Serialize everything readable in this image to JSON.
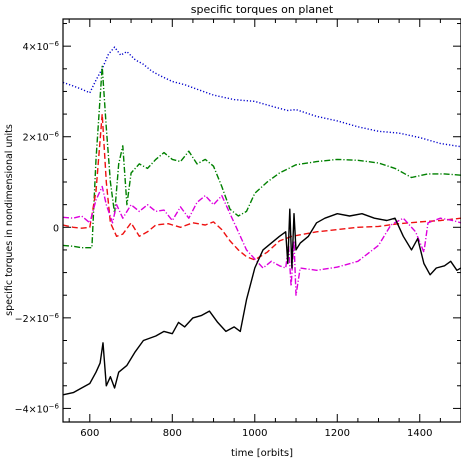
{
  "chart_data": {
    "type": "line",
    "title": "specific torques on planet",
    "xlabel": "time [orbits]",
    "ylabel": "specific torques in nondimensional units",
    "xlim": [
      535,
      1500
    ],
    "ylim": [
      -4.3e-06,
      4.6e-06
    ],
    "x_ticks": [
      {
        "value": 600,
        "label": "600"
      },
      {
        "value": 800,
        "label": "800"
      },
      {
        "value": 1000,
        "label": "1000"
      },
      {
        "value": 1200,
        "label": "1200"
      },
      {
        "value": 1400,
        "label": "1400"
      }
    ],
    "y_ticks": [
      {
        "value": -4e-06,
        "mant": "−4×10",
        "exp": "−6"
      },
      {
        "value": -2e-06,
        "mant": "−2×10",
        "exp": "−6"
      },
      {
        "value": 0,
        "mant": "0",
        "exp": ""
      },
      {
        "value": 2e-06,
        "mant": "2×10",
        "exp": "−6"
      },
      {
        "value": 4e-06,
        "mant": "4×10",
        "exp": "−6"
      }
    ],
    "grid": false,
    "legend": "none",
    "series": [
      {
        "color": "#0000cc",
        "dash": "dotted",
        "points": [
          [
            535,
            3.2e-06
          ],
          [
            560,
            3.12e-06
          ],
          [
            580,
            3.05e-06
          ],
          [
            600,
            2.97e-06
          ],
          [
            615,
            3.25e-06
          ],
          [
            630,
            3.5e-06
          ],
          [
            645,
            3.82e-06
          ],
          [
            660,
            3.98e-06
          ],
          [
            675,
            3.8e-06
          ],
          [
            690,
            3.88e-06
          ],
          [
            710,
            3.7e-06
          ],
          [
            730,
            3.6e-06
          ],
          [
            750,
            3.45e-06
          ],
          [
            770,
            3.35e-06
          ],
          [
            800,
            3.22e-06
          ],
          [
            830,
            3.15e-06
          ],
          [
            860,
            3.05e-06
          ],
          [
            900,
            2.92e-06
          ],
          [
            950,
            2.82e-06
          ],
          [
            1000,
            2.78e-06
          ],
          [
            1050,
            2.65e-06
          ],
          [
            1080,
            2.58e-06
          ],
          [
            1100,
            2.6e-06
          ],
          [
            1150,
            2.45e-06
          ],
          [
            1200,
            2.35e-06
          ],
          [
            1250,
            2.22e-06
          ],
          [
            1300,
            2.12e-06
          ],
          [
            1350,
            2.08e-06
          ],
          [
            1400,
            1.98e-06
          ],
          [
            1450,
            1.85e-06
          ],
          [
            1500,
            1.78e-06
          ]
        ]
      },
      {
        "color": "#008000",
        "dash": "dash-dot",
        "points": [
          [
            535,
            -4e-07
          ],
          [
            560,
            -4.2e-07
          ],
          [
            580,
            -4.5e-07
          ],
          [
            605,
            -4.5e-07
          ],
          [
            615,
            1.5e-06
          ],
          [
            630,
            3.55e-06
          ],
          [
            640,
            2.2e-06
          ],
          [
            650,
            1e-06
          ],
          [
            660,
            3e-07
          ],
          [
            670,
            1.4e-06
          ],
          [
            680,
            1.8e-06
          ],
          [
            690,
            5e-07
          ],
          [
            700,
            1.2e-06
          ],
          [
            720,
            1.4e-06
          ],
          [
            740,
            1.3e-06
          ],
          [
            760,
            1.5e-06
          ],
          [
            780,
            1.65e-06
          ],
          [
            800,
            1.5e-06
          ],
          [
            820,
            1.45e-06
          ],
          [
            840,
            1.68e-06
          ],
          [
            860,
            1.4e-06
          ],
          [
            880,
            1.5e-06
          ],
          [
            900,
            1.35e-06
          ],
          [
            920,
            9e-07
          ],
          [
            940,
            4e-07
          ],
          [
            960,
            2.5e-07
          ],
          [
            980,
            3.5e-07
          ],
          [
            1000,
            7.5e-07
          ],
          [
            1030,
            1e-06
          ],
          [
            1060,
            1.2e-06
          ],
          [
            1100,
            1.38e-06
          ],
          [
            1150,
            1.45e-06
          ],
          [
            1200,
            1.5e-06
          ],
          [
            1250,
            1.48e-06
          ],
          [
            1300,
            1.42e-06
          ],
          [
            1340,
            1.3e-06
          ],
          [
            1380,
            1.1e-06
          ],
          [
            1420,
            1.18e-06
          ],
          [
            1460,
            1.18e-06
          ],
          [
            1500,
            1.15e-06
          ]
        ]
      },
      {
        "color": "#ee1111",
        "dash": "dashed",
        "points": [
          [
            535,
            5e-08
          ],
          [
            560,
            0.0
          ],
          [
            580,
            -2e-08
          ],
          [
            600,
            0.0
          ],
          [
            615,
            8e-07
          ],
          [
            630,
            2.5e-06
          ],
          [
            640,
            1e-06
          ],
          [
            650,
            1e-07
          ],
          [
            665,
            -2e-07
          ],
          [
            680,
            -1.5e-07
          ],
          [
            700,
            1e-07
          ],
          [
            720,
            -2e-07
          ],
          [
            740,
            -1e-07
          ],
          [
            760,
            5e-08
          ],
          [
            790,
            8e-08
          ],
          [
            820,
            0.0
          ],
          [
            850,
            1e-07
          ],
          [
            880,
            5e-08
          ],
          [
            900,
            1.2e-07
          ],
          [
            920,
            -5e-08
          ],
          [
            940,
            -3e-07
          ],
          [
            960,
            -5e-07
          ],
          [
            980,
            -6.5e-07
          ],
          [
            1000,
            -7.2e-07
          ],
          [
            1030,
            -5.5e-07
          ],
          [
            1060,
            -3e-07
          ],
          [
            1090,
            -2e-07
          ],
          [
            1120,
            -1.5e-07
          ],
          [
            1150,
            -1e-07
          ],
          [
            1200,
            -5e-08
          ],
          [
            1250,
            0.0
          ],
          [
            1300,
            2e-08
          ],
          [
            1350,
            8e-08
          ],
          [
            1400,
            1.2e-07
          ],
          [
            1450,
            1.5e-07
          ],
          [
            1500,
            2e-07
          ]
        ]
      },
      {
        "color": "#dd00dd",
        "dash": "dash-dot",
        "points": [
          [
            535,
            2.2e-07
          ],
          [
            560,
            2e-07
          ],
          [
            580,
            2.5e-07
          ],
          [
            600,
            1e-07
          ],
          [
            615,
            6e-07
          ],
          [
            630,
            9e-07
          ],
          [
            640,
            5e-07
          ],
          [
            655,
            1e-07
          ],
          [
            665,
            5e-07
          ],
          [
            680,
            2e-07
          ],
          [
            700,
            5e-07
          ],
          [
            720,
            3.5e-07
          ],
          [
            740,
            5e-07
          ],
          [
            760,
            3.5e-07
          ],
          [
            780,
            3.8e-07
          ],
          [
            800,
            1.5e-07
          ],
          [
            820,
            4.5e-07
          ],
          [
            840,
            2e-07
          ],
          [
            860,
            5.5e-07
          ],
          [
            880,
            7e-07
          ],
          [
            900,
            5e-07
          ],
          [
            920,
            7e-07
          ],
          [
            940,
            3e-07
          ],
          [
            960,
            -1e-07
          ],
          [
            980,
            -5e-07
          ],
          [
            1000,
            -7e-07
          ],
          [
            1020,
            -9e-07
          ],
          [
            1040,
            -7.5e-07
          ],
          [
            1060,
            -8.5e-07
          ],
          [
            1075,
            -9e-07
          ],
          [
            1082,
            -4e-07
          ],
          [
            1088,
            -1.3e-06
          ],
          [
            1095,
            -3e-07
          ],
          [
            1100,
            -1.5e-06
          ],
          [
            1110,
            -9e-07
          ],
          [
            1150,
            -9.5e-07
          ],
          [
            1200,
            -8.8e-07
          ],
          [
            1250,
            -7.5e-07
          ],
          [
            1300,
            -4e-07
          ],
          [
            1330,
            5e-08
          ],
          [
            1360,
            2e-07
          ],
          [
            1390,
            -1e-07
          ],
          [
            1410,
            -5.5e-07
          ],
          [
            1420,
            1e-07
          ],
          [
            1450,
            2e-07
          ],
          [
            1480,
            1.5e-07
          ],
          [
            1500,
            1e-07
          ]
        ]
      },
      {
        "color": "#000000",
        "dash": "solid",
        "points": [
          [
            535,
            -3.7e-06
          ],
          [
            560,
            -3.65e-06
          ],
          [
            580,
            -3.55e-06
          ],
          [
            600,
            -3.45e-06
          ],
          [
            615,
            -3.2e-06
          ],
          [
            625,
            -3e-06
          ],
          [
            632,
            -2.55e-06
          ],
          [
            640,
            -3.5e-06
          ],
          [
            650,
            -3.3e-06
          ],
          [
            660,
            -3.55e-06
          ],
          [
            670,
            -3.2e-06
          ],
          [
            690,
            -3.05e-06
          ],
          [
            710,
            -2.75e-06
          ],
          [
            730,
            -2.5e-06
          ],
          [
            760,
            -2.4e-06
          ],
          [
            780,
            -2.3e-06
          ],
          [
            800,
            -2.35e-06
          ],
          [
            815,
            -2.1e-06
          ],
          [
            830,
            -2.2e-06
          ],
          [
            850,
            -2e-06
          ],
          [
            870,
            -1.95e-06
          ],
          [
            890,
            -1.85e-06
          ],
          [
            910,
            -2.1e-06
          ],
          [
            930,
            -2.3e-06
          ],
          [
            950,
            -2.2e-06
          ],
          [
            965,
            -2.3e-06
          ],
          [
            980,
            -1.6e-06
          ],
          [
            1000,
            -9e-07
          ],
          [
            1020,
            -5e-07
          ],
          [
            1040,
            -3.5e-07
          ],
          [
            1060,
            -2e-07
          ],
          [
            1075,
            -1e-07
          ],
          [
            1080,
            -8e-07
          ],
          [
            1085,
            4e-07
          ],
          [
            1090,
            -9e-07
          ],
          [
            1095,
            3e-07
          ],
          [
            1100,
            -5e-07
          ],
          [
            1110,
            -3.5e-07
          ],
          [
            1130,
            -2e-07
          ],
          [
            1150,
            1e-07
          ],
          [
            1170,
            2e-07
          ],
          [
            1200,
            3e-07
          ],
          [
            1230,
            2.5e-07
          ],
          [
            1260,
            3e-07
          ],
          [
            1290,
            2e-07
          ],
          [
            1320,
            1.5e-07
          ],
          [
            1340,
            2e-07
          ],
          [
            1360,
            -2e-07
          ],
          [
            1380,
            -5e-07
          ],
          [
            1395,
            -2.5e-07
          ],
          [
            1410,
            -8e-07
          ],
          [
            1425,
            -1.05e-06
          ],
          [
            1440,
            -9e-07
          ],
          [
            1460,
            -8.5e-07
          ],
          [
            1475,
            -7.5e-07
          ],
          [
            1490,
            -9.5e-07
          ],
          [
            1500,
            -9e-07
          ]
        ]
      }
    ]
  }
}
